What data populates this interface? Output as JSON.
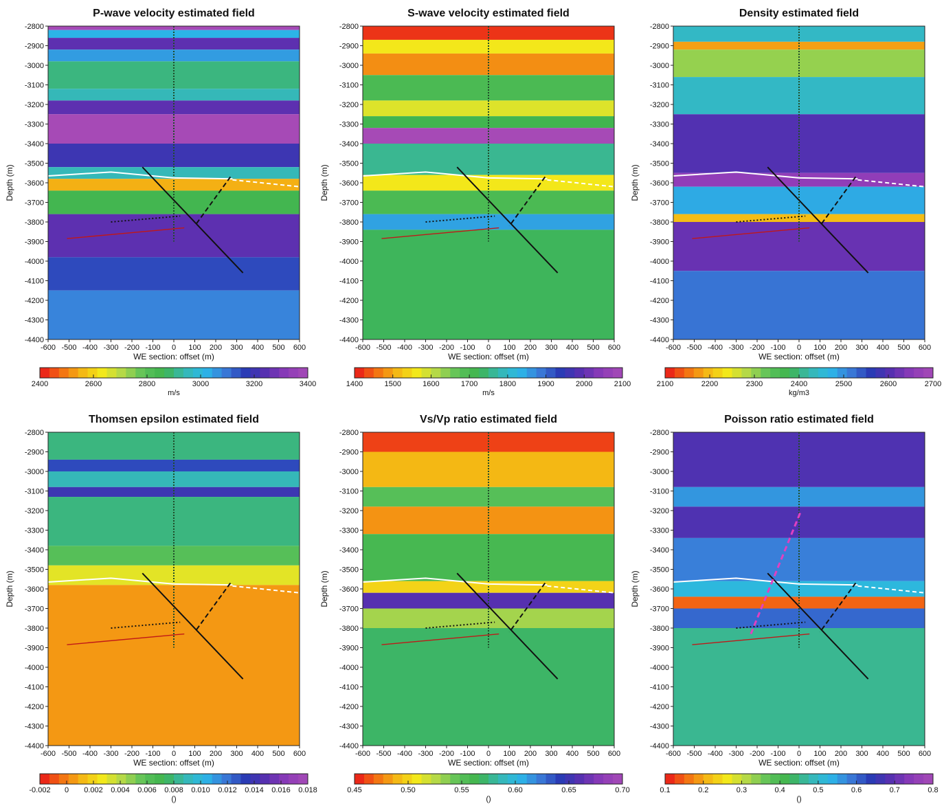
{
  "chart_data": [
    {
      "type": "heatmap",
      "title": "P-wave velocity estimated field",
      "xlabel": "WE section: offset (m)",
      "ylabel": "Depth (m)",
      "xlim": [
        -600,
        600
      ],
      "ylim": [
        -4400,
        -2800
      ],
      "xticks": [
        -600,
        -500,
        -400,
        -300,
        -200,
        -100,
        0,
        100,
        200,
        300,
        400,
        500,
        600
      ],
      "yticks": [
        -2800,
        -2900,
        -3000,
        -3100,
        -3200,
        -3300,
        -3400,
        -3500,
        -3600,
        -3700,
        -3800,
        -3900,
        -4000,
        -4100,
        -4200,
        -4300,
        -4400
      ],
      "colorbar": {
        "label": "m/s",
        "range": [
          2400,
          3400
        ],
        "ticks": [
          "2400",
          "2600",
          "2800",
          "3000",
          "3200",
          "3400"
        ]
      },
      "bands": [
        {
          "depth_top": -2800,
          "depth_bottom": -2820,
          "value": 3400
        },
        {
          "depth_top": -2820,
          "depth_bottom": -2860,
          "value": 3020
        },
        {
          "depth_top": -2860,
          "depth_bottom": -2920,
          "value": 3250
        },
        {
          "depth_top": -2920,
          "depth_bottom": -2980,
          "value": 3050
        },
        {
          "depth_top": -2980,
          "depth_bottom": -3120,
          "value": 2900
        },
        {
          "depth_top": -3120,
          "depth_bottom": -3180,
          "value": 2950
        },
        {
          "depth_top": -3180,
          "depth_bottom": -3250,
          "value": 3250
        },
        {
          "depth_top": -3250,
          "depth_bottom": -3400,
          "value": 3400
        },
        {
          "depth_top": -3400,
          "depth_bottom": -3520,
          "value": 3200
        },
        {
          "depth_top": -3520,
          "depth_bottom": -3580,
          "value": 2950
        },
        {
          "depth_top": -3580,
          "depth_bottom": -3640,
          "value": 2550
        },
        {
          "depth_top": -3640,
          "depth_bottom": -3760,
          "value": 2850
        },
        {
          "depth_top": -3760,
          "depth_bottom": -3980,
          "value": 3250
        },
        {
          "depth_top": -3980,
          "depth_bottom": -4150,
          "value": 3150
        },
        {
          "depth_top": -4150,
          "depth_bottom": -4400,
          "value": 3080
        }
      ]
    },
    {
      "type": "heatmap",
      "title": "S-wave velocity estimated field",
      "xlabel": "WE section: offset (m)",
      "ylabel": "Depth (m)",
      "xlim": [
        -600,
        600
      ],
      "ylim": [
        -4400,
        -2800
      ],
      "xticks": [
        -600,
        -500,
        -400,
        -300,
        -200,
        -100,
        0,
        100,
        200,
        300,
        400,
        500,
        600
      ],
      "yticks": [
        -2800,
        -2900,
        -3000,
        -3100,
        -3200,
        -3300,
        -3400,
        -3500,
        -3600,
        -3700,
        -3800,
        -3900,
        -4000,
        -4100,
        -4200,
        -4300,
        -4400
      ],
      "colorbar": {
        "label": "m/s",
        "range": [
          1400,
          2100
        ],
        "ticks": [
          "1400",
          "1500",
          "1600",
          "1700",
          "1800",
          "1900",
          "2000",
          "2100"
        ]
      },
      "bands": [
        {
          "depth_top": -2800,
          "depth_bottom": -2870,
          "value": 1420
        },
        {
          "depth_top": -2870,
          "depth_bottom": -2940,
          "value": 1560
        },
        {
          "depth_top": -2940,
          "depth_bottom": -3050,
          "value": 1480
        },
        {
          "depth_top": -3050,
          "depth_bottom": -3180,
          "value": 1700
        },
        {
          "depth_top": -3180,
          "depth_bottom": -3260,
          "value": 1580
        },
        {
          "depth_top": -3260,
          "depth_bottom": -3320,
          "value": 1720
        },
        {
          "depth_top": -3320,
          "depth_bottom": -3400,
          "value": 2100
        },
        {
          "depth_top": -3400,
          "depth_bottom": -3560,
          "value": 1760
        },
        {
          "depth_top": -3560,
          "depth_bottom": -3640,
          "value": 1560
        },
        {
          "depth_top": -3640,
          "depth_bottom": -3760,
          "value": 1700
        },
        {
          "depth_top": -3760,
          "depth_bottom": -3840,
          "value": 1850
        },
        {
          "depth_top": -3840,
          "depth_bottom": -4400,
          "value": 1730
        }
      ]
    },
    {
      "type": "heatmap",
      "title": "Density estimated field",
      "xlabel": "WE section: offset (m)",
      "ylabel": "Depth (m)",
      "xlim": [
        -600,
        600
      ],
      "ylim": [
        -4400,
        -2800
      ],
      "xticks": [
        -600,
        -500,
        -400,
        -300,
        -200,
        -100,
        0,
        100,
        200,
        300,
        400,
        500,
        600
      ],
      "yticks": [
        -2800,
        -2900,
        -3000,
        -3100,
        -3200,
        -3300,
        -3400,
        -3500,
        -3600,
        -3700,
        -3800,
        -3900,
        -4000,
        -4100,
        -4200,
        -4300,
        -4400
      ],
      "colorbar": {
        "label": "kg/m3",
        "range": [
          2100,
          2700
        ],
        "ticks": [
          "2100",
          "2200",
          "2300",
          "2400",
          "2500",
          "2600",
          "2700"
        ]
      },
      "bands": [
        {
          "depth_top": -2800,
          "depth_bottom": -2880,
          "value": 2440
        },
        {
          "depth_top": -2880,
          "depth_bottom": -2920,
          "value": 2180
        },
        {
          "depth_top": -2920,
          "depth_bottom": -3060,
          "value": 2300
        },
        {
          "depth_top": -3060,
          "depth_bottom": -3250,
          "value": 2440
        },
        {
          "depth_top": -3250,
          "depth_bottom": -3550,
          "value": 2600
        },
        {
          "depth_top": -3550,
          "depth_bottom": -3620,
          "value": 2660
        },
        {
          "depth_top": -3620,
          "depth_bottom": -3760,
          "value": 2480
        },
        {
          "depth_top": -3760,
          "depth_bottom": -3800,
          "value": 2200
        },
        {
          "depth_top": -3800,
          "depth_bottom": -4050,
          "value": 2620
        },
        {
          "depth_top": -4050,
          "depth_bottom": -4400,
          "value": 2520
        }
      ]
    },
    {
      "type": "heatmap",
      "title": "Thomsen epsilon estimated field",
      "xlabel": "WE section: offset (m)",
      "ylabel": "Depth (m)",
      "xlim": [
        -600,
        600
      ],
      "ylim": [
        -4400,
        -2800
      ],
      "xticks": [
        -600,
        -500,
        -400,
        -300,
        -200,
        -100,
        0,
        100,
        200,
        300,
        400,
        500,
        600
      ],
      "yticks": [
        -2800,
        -2900,
        -3000,
        -3100,
        -3200,
        -3300,
        -3400,
        -3500,
        -3600,
        -3700,
        -3800,
        -3900,
        -4000,
        -4100,
        -4200,
        -4300,
        -4400
      ],
      "colorbar": {
        "label": "()",
        "range": [
          -0.002,
          0.018
        ],
        "ticks": [
          "-0.002",
          "0",
          "0.002",
          "0.004",
          "0.006",
          "0.008",
          "0.010",
          "0.012",
          "0.014",
          "0.016",
          "0.018"
        ]
      },
      "bands": [
        {
          "depth_top": -2800,
          "depth_bottom": -2940,
          "value": 0.008
        },
        {
          "depth_top": -2940,
          "depth_bottom": -3000,
          "value": 0.013
        },
        {
          "depth_top": -3000,
          "depth_bottom": -3080,
          "value": 0.009
        },
        {
          "depth_top": -3080,
          "depth_bottom": -3130,
          "value": 0.014
        },
        {
          "depth_top": -3130,
          "depth_bottom": -3380,
          "value": 0.008
        },
        {
          "depth_top": -3380,
          "depth_bottom": -3480,
          "value": 0.006
        },
        {
          "depth_top": -3480,
          "depth_bottom": -3580,
          "value": 0.003
        },
        {
          "depth_top": -3580,
          "depth_bottom": -4400,
          "value": 0.0005
        }
      ]
    },
    {
      "type": "heatmap",
      "title": "Vs/Vp ratio estimated field",
      "xlabel": "WE section: offset (m)",
      "ylabel": "Depth (m)",
      "xlim": [
        -600,
        600
      ],
      "ylim": [
        -4400,
        -2800
      ],
      "xticks": [
        -600,
        -500,
        -400,
        -300,
        -200,
        -100,
        0,
        100,
        200,
        300,
        400,
        500,
        600
      ],
      "yticks": [
        -2800,
        -2900,
        -3000,
        -3100,
        -3200,
        -3300,
        -3400,
        -3500,
        -3600,
        -3700,
        -3800,
        -3900,
        -4000,
        -4100,
        -4200,
        -4300,
        -4400
      ],
      "colorbar": {
        "label": "()",
        "range": [
          0.45,
          0.7
        ],
        "ticks": [
          "0.45",
          "0.50",
          "0.55",
          "0.60",
          "0.65",
          "0.70"
        ]
      },
      "bands": [
        {
          "depth_top": -2800,
          "depth_bottom": -2900,
          "value": 0.46
        },
        {
          "depth_top": -2900,
          "depth_bottom": -3080,
          "value": 0.49
        },
        {
          "depth_top": -3080,
          "depth_bottom": -3180,
          "value": 0.55
        },
        {
          "depth_top": -3180,
          "depth_bottom": -3320,
          "value": 0.48
        },
        {
          "depth_top": -3320,
          "depth_bottom": -3560,
          "value": 0.56
        },
        {
          "depth_top": -3560,
          "depth_bottom": -3620,
          "value": 0.5
        },
        {
          "depth_top": -3620,
          "depth_bottom": -3700,
          "value": 0.66
        },
        {
          "depth_top": -3700,
          "depth_bottom": -3800,
          "value": 0.53
        },
        {
          "depth_top": -3800,
          "depth_bottom": -4400,
          "value": 0.57
        }
      ]
    },
    {
      "type": "heatmap",
      "title": "Poisson ratio estimated field",
      "xlabel": "WE section: offset (m)",
      "ylabel": "Depth (m)",
      "xlim": [
        -600,
        600
      ],
      "ylim": [
        -4400,
        -2800
      ],
      "xticks": [
        -600,
        -500,
        -400,
        -300,
        -200,
        -100,
        0,
        100,
        200,
        300,
        400,
        500,
        600
      ],
      "yticks": [
        -2800,
        -2900,
        -3000,
        -3100,
        -3200,
        -3300,
        -3400,
        -3500,
        -3600,
        -3700,
        -3800,
        -3900,
        -4000,
        -4100,
        -4200,
        -4300,
        -4400
      ],
      "colorbar": {
        "label": "()",
        "range": [
          0.1,
          0.8
        ],
        "ticks": [
          "0.1",
          "0.2",
          "0.3",
          "0.4",
          "0.5",
          "0.6",
          "0.7",
          "0.8"
        ]
      },
      "bands": [
        {
          "depth_top": -2800,
          "depth_bottom": -3080,
          "value": 0.68
        },
        {
          "depth_top": -3080,
          "depth_bottom": -3180,
          "value": 0.56
        },
        {
          "depth_top": -3180,
          "depth_bottom": -3340,
          "value": 0.68
        },
        {
          "depth_top": -3340,
          "depth_bottom": -3560,
          "value": 0.58
        },
        {
          "depth_top": -3560,
          "depth_bottom": -3640,
          "value": 0.52
        },
        {
          "depth_top": -3640,
          "depth_bottom": -3700,
          "value": 0.15
        },
        {
          "depth_top": -3700,
          "depth_bottom": -3800,
          "value": 0.6
        },
        {
          "depth_top": -3800,
          "depth_bottom": -4400,
          "value": 0.46
        }
      ]
    }
  ],
  "overlays": {
    "horizon_white_solid": {
      "x": [
        -600,
        -300,
        0,
        280
      ],
      "y": [
        -3565,
        -3545,
        -3575,
        -3580
      ]
    },
    "horizon_white_dashed": {
      "x": [
        280,
        600
      ],
      "y": [
        -3585,
        -3620
      ]
    },
    "well_trace": {
      "x": [
        0,
        0
      ],
      "y": [
        -2800,
        -3900
      ]
    },
    "fault_solid": {
      "x": [
        -150,
        330
      ],
      "y": [
        -3520,
        -4060
      ]
    },
    "fault_dashed": {
      "x": [
        270,
        100
      ],
      "y": [
        -3570,
        -3820
      ]
    },
    "dotted_marker": {
      "x": [
        -300,
        30
      ],
      "y": [
        -3800,
        -3770
      ]
    },
    "red_horizon": {
      "x": [
        -510,
        50
      ],
      "y": [
        -3885,
        -3830
      ]
    },
    "magenta_dashed": {
      "x": [
        -230,
        10
      ],
      "y": [
        -3830,
        -3200
      ],
      "panel": 5
    }
  },
  "colormap": [
    "#e8141a",
    "#f36a12",
    "#f4b414",
    "#f3e81a",
    "#b2d84a",
    "#5cc25a",
    "#3fb44e",
    "#37b8b0",
    "#2bb8e8",
    "#3a7ad8",
    "#2a3ab4",
    "#5a2fb0",
    "#8e3bb8",
    "#a64ab6"
  ]
}
